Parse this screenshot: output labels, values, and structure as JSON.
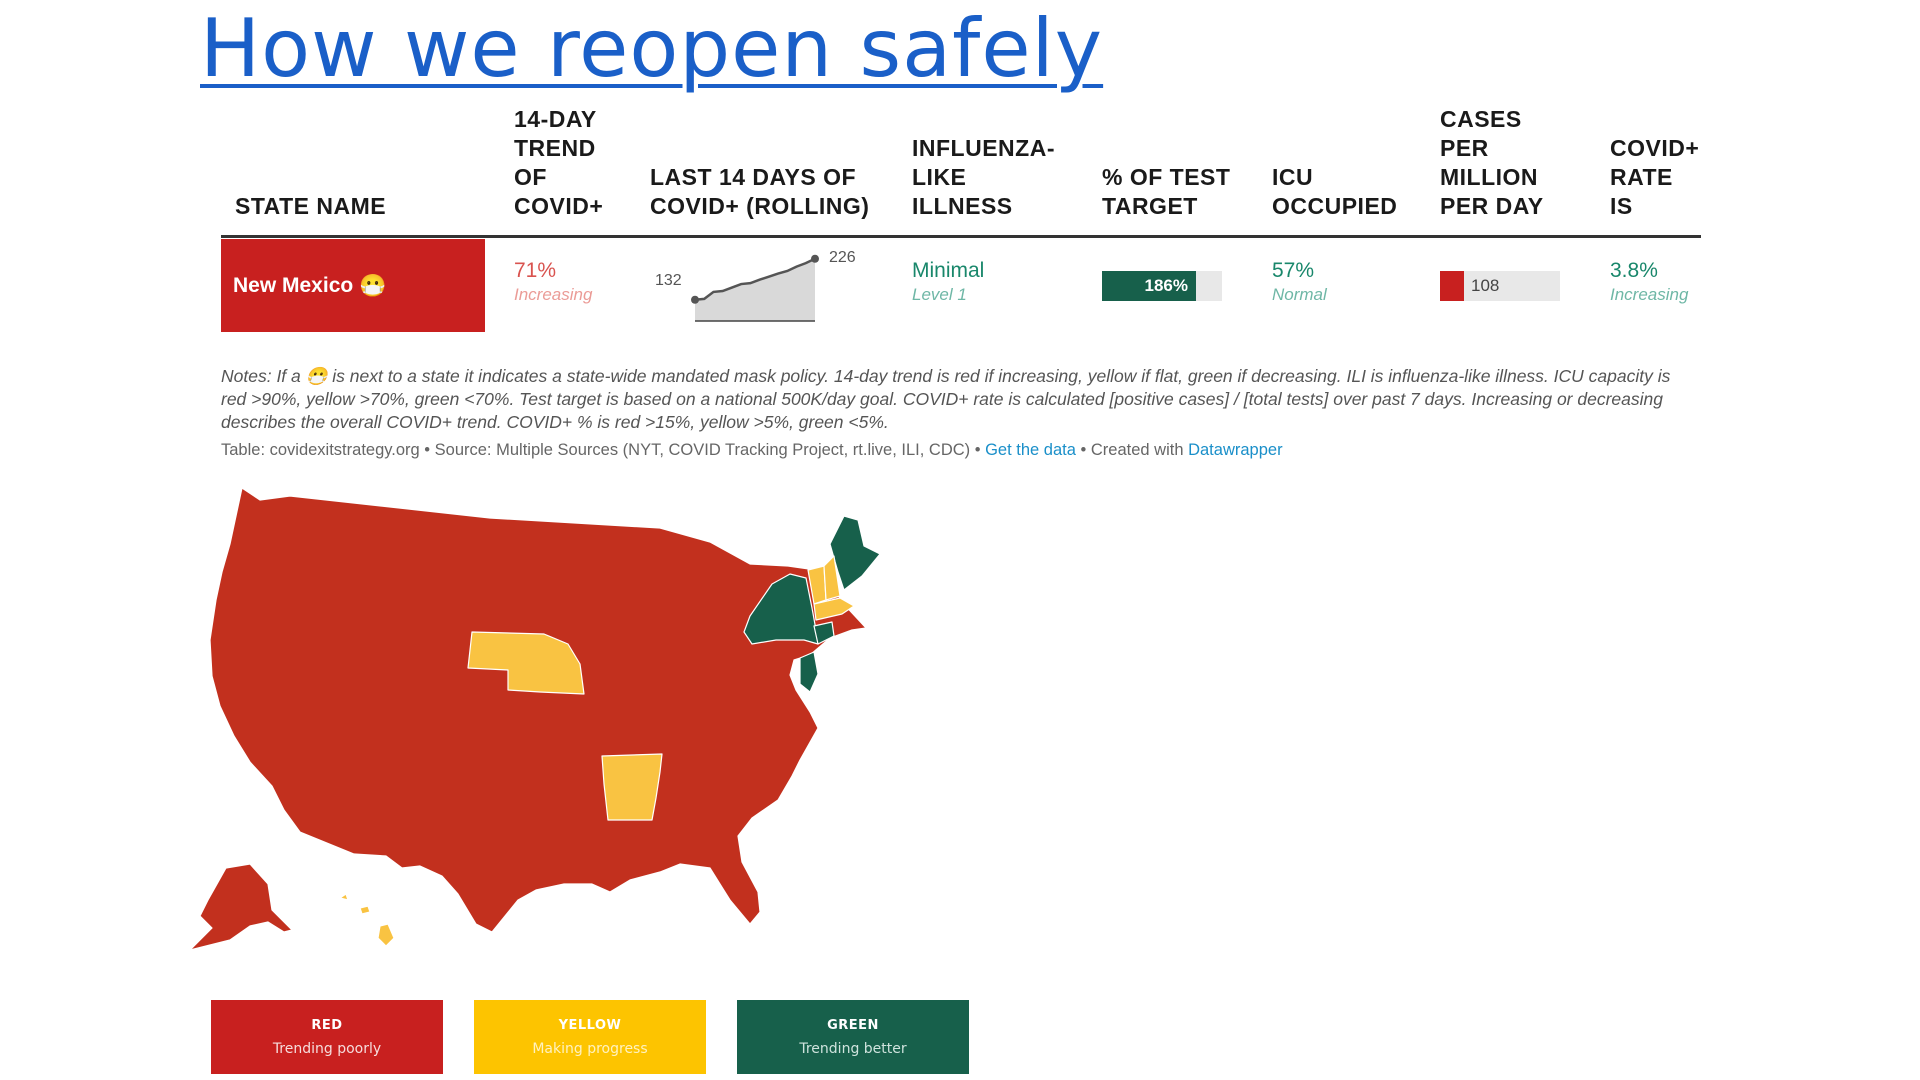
{
  "title": "How we reopen safely",
  "table": {
    "headers": [
      "STATE NAME",
      "14-DAY TREND OF COVID+",
      "LAST 14 DAYS OF COVID+ (ROLLING)",
      "INFLUENZA-LIKE ILLNESS",
      "% OF TEST TARGET",
      "ICU OCCUPIED",
      "CASES PER MILLION PER DAY",
      "COVID+ RATE IS"
    ],
    "row": {
      "state": "New Mexico",
      "mask_icon": "mask-icon",
      "trend_value": "71%",
      "trend_label": "Increasing",
      "spark_start": "132",
      "spark_end": "226",
      "spark_values": [
        132,
        134,
        150,
        152,
        160,
        168,
        170,
        178,
        185,
        192,
        198,
        208,
        216,
        226
      ],
      "ili_value": "Minimal",
      "ili_label": "Level 1",
      "test_target": "186%",
      "test_target_fraction": 0.78,
      "icu_value": "57%",
      "icu_label": "Normal",
      "cases_value": "108",
      "cases_fraction": 0.2,
      "rate_value": "3.8%",
      "rate_label": "Increasing"
    }
  },
  "notes": "Notes: If a 😷 is next to a state it indicates a state-wide mandated mask policy. 14-day trend is red if increasing, yellow if flat, green if decreasing. ILI is influenza-like illness. ICU capacity is red >90%, yellow >70%, green <70%. Test target is based on a national 500K/day goal. COVID+ rate is calculated [positive cases] / [total tests] over past 7 days. Increasing or decreasing describes the overall COVID+ trend. COVID+ % is red >15%, yellow >5%, green <5%.",
  "source": {
    "prefix": "Table: covidexitstrategy.org • Source: Multiple Sources (NYT, COVID Tracking Project, rt.live, ILI, CDC) • ",
    "get_data": "Get the data",
    "middle": " • Created with ",
    "datawrapper": "Datawrapper"
  },
  "colors": {
    "red": "#c8201f",
    "map_red": "#c2301e",
    "yellow": "#f9c342",
    "legend_yellow": "#fdc400",
    "green": "#17604b",
    "teal_text": "#19876b",
    "trend_red": "#d9534f"
  },
  "map": {
    "yellow_states": [
      "NE",
      "AR",
      "NH",
      "VT",
      "MA",
      "HI"
    ],
    "green_states": [
      "ME",
      "NY",
      "NJ",
      "CT"
    ]
  },
  "legend": [
    {
      "title": "RED",
      "desc": "Trending poorly",
      "color": "#c8201f"
    },
    {
      "title": "YELLOW",
      "desc": "Making progress",
      "color": "#fdc400"
    },
    {
      "title": "GREEN",
      "desc": "Trending better",
      "color": "#17604b"
    }
  ]
}
